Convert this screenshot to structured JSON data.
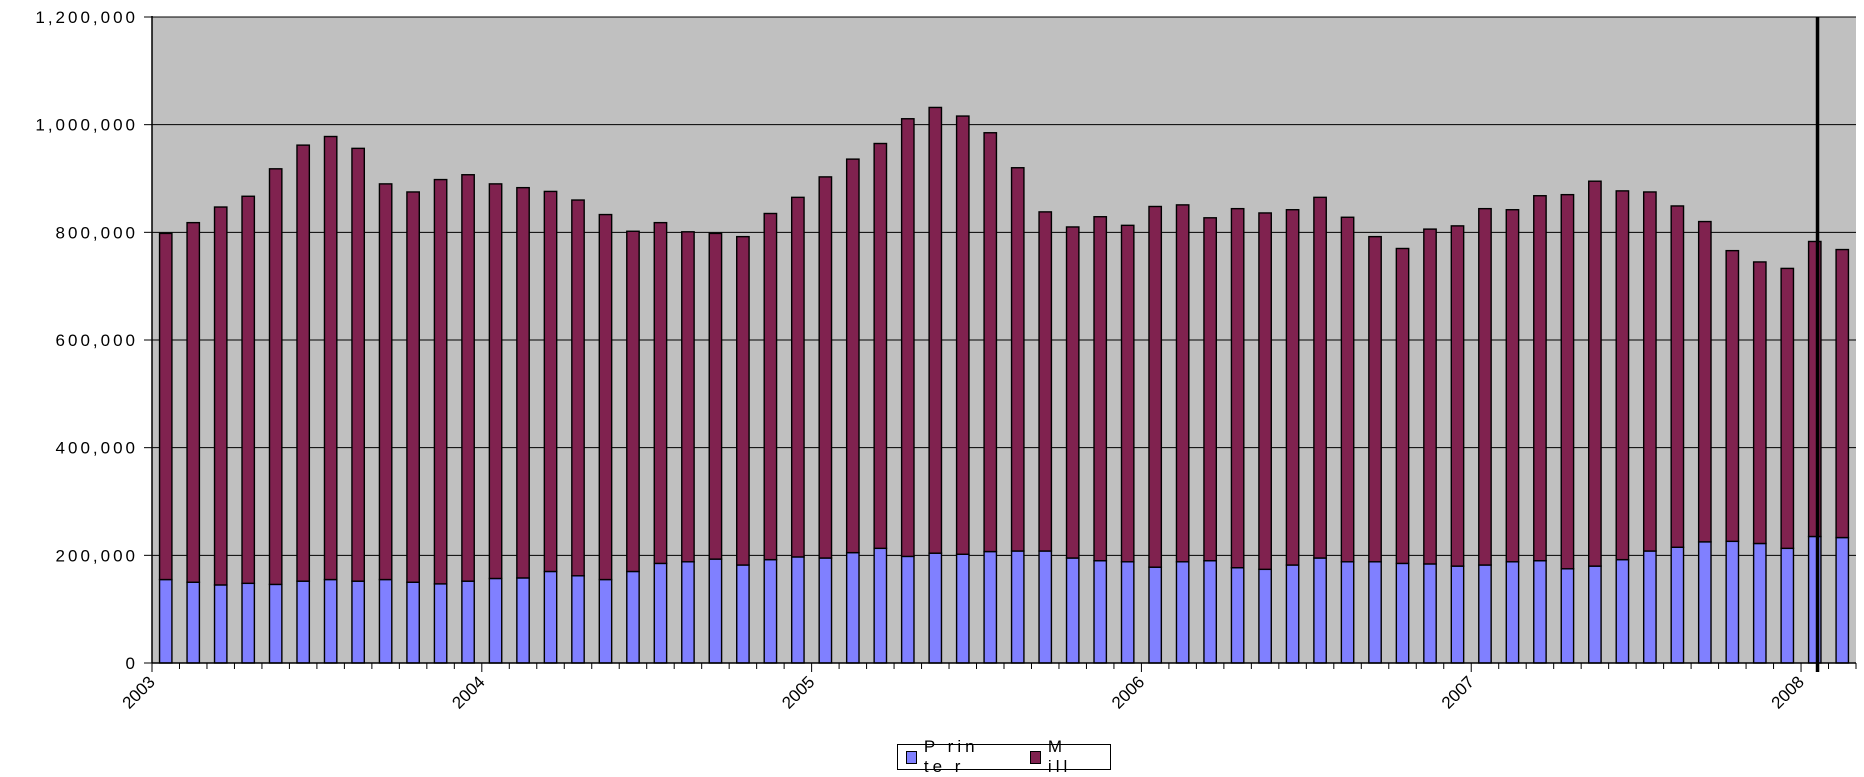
{
  "chart_data": {
    "type": "bar",
    "stacked": true,
    "ylim": [
      0,
      1200000
    ],
    "y_ticks": [
      "0",
      "200,000",
      "400,000",
      "600,000",
      "800,000",
      "1,000,000",
      "1,200,000"
    ],
    "y_tick_values": [
      0,
      200000,
      400000,
      600000,
      800000,
      1000000,
      1200000
    ],
    "x_ticks": [
      "2003",
      "2004",
      "2005",
      "2006",
      "2007",
      "2008"
    ],
    "plot_background": "#c0c0c0",
    "grid": true,
    "legend_position": "bottom-center",
    "series": [
      {
        "name": "Printer",
        "color": "#8080ff",
        "values": [
          155000,
          150000,
          145000,
          148000,
          146000,
          152000,
          155000,
          152000,
          155000,
          150000,
          147000,
          152000,
          157000,
          158000,
          170000,
          162000,
          155000,
          170000,
          185000,
          188000,
          193000,
          182000,
          192000,
          197000,
          195000,
          205000,
          213000,
          198000,
          204000,
          202000,
          207000,
          208000,
          208000,
          195000,
          190000,
          188000,
          178000,
          188000,
          190000,
          177000,
          174000,
          182000,
          195000,
          188000,
          188000,
          185000,
          184000,
          180000,
          182000,
          188000,
          190000,
          175000,
          180000,
          192000,
          208000,
          215000,
          225000,
          226000,
          222000,
          213000,
          235000,
          233000
        ]
      },
      {
        "name": "Mill",
        "color": "#80224f",
        "values": [
          643000,
          668000,
          702000,
          719000,
          772000,
          810000,
          823000,
          804000,
          735000,
          725000,
          751000,
          755000,
          733000,
          725000,
          706000,
          698000,
          678000,
          632000,
          633000,
          613000,
          605000,
          610000,
          643000,
          668000,
          708000,
          731000,
          752000,
          813000,
          828000,
          814000,
          778000,
          712000,
          630000,
          615000,
          639000,
          625000,
          670000,
          663000,
          637000,
          667000,
          662000,
          660000,
          670000,
          640000,
          604000,
          585000,
          622000,
          632000,
          662000,
          654000,
          678000,
          695000,
          715000,
          685000,
          667000,
          634000,
          595000,
          540000,
          523000,
          520000,
          548000,
          535000
        ]
      }
    ]
  },
  "legend": {
    "printer_label": "P rin te r",
    "mill_label": "M ill"
  }
}
